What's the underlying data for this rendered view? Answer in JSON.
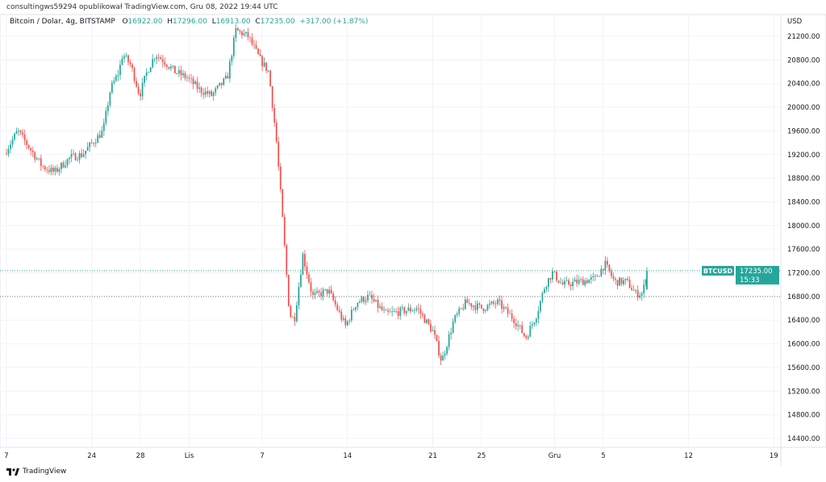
{
  "publisher_line": "consultingws59294 opublikował TradingView.com, Gru 08, 2022 19:44 UTC",
  "legend": {
    "symbol": "Bitcoin / Dolar, 4g, BITSTAMP",
    "o_label": "O",
    "o": "16922.00",
    "h_label": "H",
    "h": "17296.00",
    "l_label": "L",
    "l": "16913.00",
    "c_label": "C",
    "c": "17235.00",
    "change": "+317.00 (+1.87%)"
  },
  "footer": {
    "logo_text": "TradingView"
  },
  "colors": {
    "up": "#26a69a",
    "down": "#ef5350",
    "grid": "#f0f3fa"
  },
  "chart_data": {
    "type": "candlestick",
    "title": "Bitcoin / Dolar, 4g, BITSTAMP",
    "currency_label": "USD",
    "y_ticks": [
      21200,
      20800,
      20400,
      20000,
      19600,
      19200,
      18800,
      18400,
      18000,
      17600,
      17200,
      16800,
      16400,
      16000,
      15600,
      15200,
      14800,
      14400
    ],
    "ylim": [
      14200,
      21400
    ],
    "x_ticks": [
      {
        "day": 0,
        "label": "7"
      },
      {
        "day": 7,
        "label": "24"
      },
      {
        "day": 11,
        "label": "28"
      },
      {
        "day": 15,
        "label": "Lis"
      },
      {
        "day": 21,
        "label": "7"
      },
      {
        "day": 28,
        "label": "14"
      },
      {
        "day": 35,
        "label": "21"
      },
      {
        "day": 39,
        "label": "25"
      },
      {
        "day": 45,
        "label": "Gru"
      },
      {
        "day": 49,
        "label": "5"
      },
      {
        "day": 56,
        "label": "12"
      },
      {
        "day": 63,
        "label": "19"
      }
    ],
    "x_unit": "days since Oct 17, 2022 (4h candles)",
    "close_path": [
      [
        0,
        19220
      ],
      [
        1.1,
        19600
      ],
      [
        2.1,
        19300
      ],
      [
        3.1,
        19000
      ],
      [
        4.1,
        18900
      ],
      [
        5.4,
        19150
      ],
      [
        6.4,
        19200
      ],
      [
        6.8,
        19300
      ],
      [
        8.1,
        19600
      ],
      [
        8.7,
        20300
      ],
      [
        9.4,
        20600
      ],
      [
        9.7,
        20900
      ],
      [
        10.4,
        20700
      ],
      [
        11.1,
        20200
      ],
      [
        11.7,
        20600
      ],
      [
        12.4,
        20900
      ],
      [
        13,
        20800
      ],
      [
        14,
        20600
      ],
      [
        15,
        20500
      ],
      [
        16,
        20300
      ],
      [
        17,
        20200
      ],
      [
        18.3,
        20500
      ],
      [
        19,
        21300
      ],
      [
        20,
        21200
      ],
      [
        21,
        20800
      ],
      [
        21.7,
        20600
      ],
      [
        22.3,
        19500
      ],
      [
        22.8,
        18200
      ],
      [
        23.4,
        16500
      ],
      [
        23.8,
        16400
      ],
      [
        24.5,
        17500
      ],
      [
        25.3,
        16800
      ],
      [
        26.6,
        16900
      ],
      [
        28,
        16300
      ],
      [
        28.9,
        16700
      ],
      [
        29.9,
        16800
      ],
      [
        31.3,
        16500
      ],
      [
        33.9,
        16600
      ],
      [
        35.2,
        16200
      ],
      [
        35.9,
        15700
      ],
      [
        36.9,
        16400
      ],
      [
        37.9,
        16700
      ],
      [
        39.2,
        16600
      ],
      [
        40.5,
        16700
      ],
      [
        41.9,
        16400
      ],
      [
        42.8,
        16100
      ],
      [
        43.7,
        16500
      ],
      [
        44.4,
        17000
      ],
      [
        45,
        17200
      ],
      [
        45.8,
        17000
      ],
      [
        47.2,
        17050
      ],
      [
        48.5,
        17100
      ],
      [
        49.3,
        17350
      ],
      [
        50.1,
        17050
      ],
      [
        51.1,
        17050
      ],
      [
        51.8,
        16850
      ],
      [
        52.4,
        16850
      ],
      [
        52.75,
        17235
      ]
    ],
    "last_candle": {
      "open": 16922,
      "high": 17296,
      "low": 16913,
      "close": 17235
    },
    "price_label": {
      "symbol": "BTCUSD",
      "price": "17235.00",
      "countdown": "15:33"
    },
    "reference_line": 16800,
    "reference_label": "16800.00"
  }
}
